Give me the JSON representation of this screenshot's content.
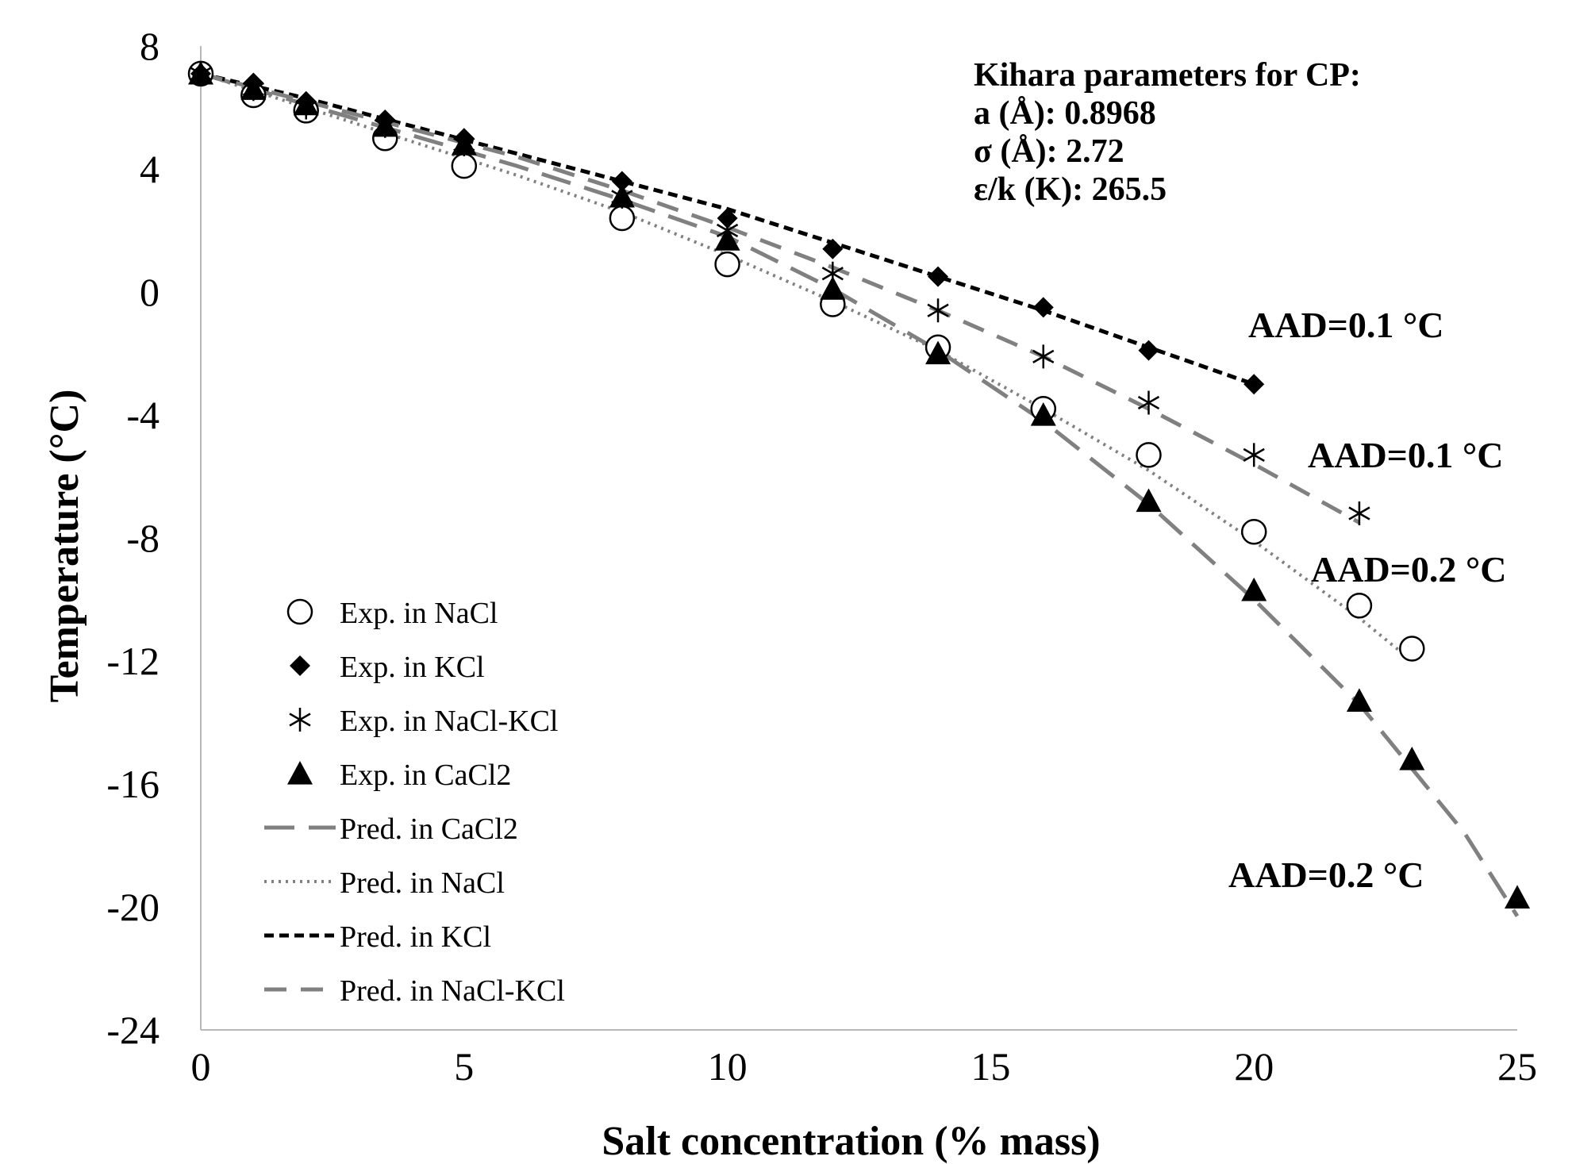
{
  "chart_data": {
    "type": "scatter",
    "xlabel": "Salt concentration (% mass)",
    "ylabel": "Temperature  (°C)",
    "xlim": [
      0,
      25
    ],
    "ylim": [
      -24,
      8
    ],
    "xticks": [
      0,
      5,
      10,
      15,
      20,
      25
    ],
    "yticks": [
      8,
      4,
      0,
      -4,
      -8,
      -12,
      -16,
      -20,
      -24
    ],
    "grid": false,
    "legend_position": "left-middle",
    "annotation_box": {
      "lines": [
        "Kihara parameters  for CP:",
        "a (Å): 0.8968",
        "σ (Å): 2.72",
        "ε/k  (K): 265.5"
      ]
    },
    "aad_labels": [
      {
        "text": "AAD=0.1 °C",
        "series": "KCl"
      },
      {
        "text": "AAD=0.1 °C",
        "series": "NaCl-KCl"
      },
      {
        "text": "AAD=0.2 °C",
        "series": "NaCl"
      },
      {
        "text": "AAD=0.2 °C",
        "series": "CaCl2"
      }
    ],
    "series": [
      {
        "name": "Exp. in NaCl",
        "kind": "marker",
        "marker": "open-circle",
        "color": "#000000",
        "x": [
          0,
          1,
          2,
          3.5,
          5,
          8,
          10,
          12,
          14,
          16,
          18,
          20,
          22,
          23
        ],
        "y": [
          7.1,
          6.4,
          5.9,
          5.0,
          4.1,
          2.4,
          0.9,
          -0.4,
          -1.8,
          -3.8,
          -5.3,
          -7.8,
          -10.2,
          -11.6
        ]
      },
      {
        "name": "Exp. in KCl",
        "kind": "marker",
        "marker": "filled-diamond",
        "color": "#000000",
        "x": [
          0,
          1,
          2,
          3.5,
          5,
          8,
          10,
          12,
          14,
          16,
          18,
          20
        ],
        "y": [
          7.1,
          6.8,
          6.2,
          5.6,
          5.0,
          3.6,
          2.4,
          1.4,
          0.5,
          -0.5,
          -1.9,
          -3.0
        ]
      },
      {
        "name": "Exp. in NaCl-KCl",
        "kind": "marker",
        "marker": "asterisk",
        "color": "#000000",
        "x": [
          0,
          1,
          2,
          3.5,
          5,
          8,
          10,
          12,
          14,
          16,
          18,
          20,
          22
        ],
        "y": [
          7.1,
          6.6,
          6.0,
          5.4,
          4.8,
          3.1,
          2.0,
          0.6,
          -0.6,
          -2.1,
          -3.6,
          -5.3,
          -7.2
        ]
      },
      {
        "name": "Exp. in CaCl2",
        "kind": "marker",
        "marker": "filled-triangle",
        "color": "#000000",
        "x": [
          0,
          1,
          2,
          3.5,
          5,
          8,
          10,
          12,
          14,
          16,
          18,
          20,
          22,
          23,
          25
        ],
        "y": [
          7.1,
          6.6,
          6.1,
          5.4,
          4.8,
          3.1,
          1.7,
          0.1,
          -2.0,
          -4.0,
          -6.8,
          -9.7,
          -13.3,
          -15.2,
          -19.7
        ]
      },
      {
        "name": "Pred. in CaCl2",
        "kind": "line",
        "dash": "long-dash",
        "color": "#808080",
        "x": [
          0,
          2,
          4,
          6,
          8,
          10,
          12,
          14,
          16,
          18,
          20,
          22,
          24,
          25
        ],
        "y": [
          7.1,
          6.1,
          5.1,
          4.1,
          3.0,
          1.8,
          0.1,
          -1.9,
          -4.2,
          -6.9,
          -10.0,
          -13.4,
          -17.6,
          -20.3
        ]
      },
      {
        "name": "Pred. in NaCl",
        "kind": "line",
        "dash": "dotted",
        "color": "#808080",
        "x": [
          0,
          2,
          4,
          6,
          8,
          10,
          12,
          14,
          16,
          18,
          20,
          22,
          23
        ],
        "y": [
          7.1,
          6.0,
          4.9,
          3.8,
          2.6,
          1.2,
          -0.3,
          -1.9,
          -3.8,
          -5.8,
          -8.1,
          -10.6,
          -12.0
        ]
      },
      {
        "name": "Pred. in KCl",
        "kind": "line",
        "dash": "short-dash",
        "color": "#000000",
        "x": [
          0,
          2,
          4,
          6,
          8,
          10,
          12,
          14,
          16,
          18,
          20
        ],
        "y": [
          7.1,
          6.3,
          5.4,
          4.5,
          3.6,
          2.7,
          1.6,
          0.5,
          -0.6,
          -1.8,
          -3.0
        ]
      },
      {
        "name": "Pred. in NaCl-KCl",
        "kind": "line",
        "dash": "medium-dash",
        "color": "#808080",
        "x": [
          0,
          2,
          4,
          6,
          8,
          10,
          12,
          14,
          16,
          18,
          20,
          22
        ],
        "y": [
          7.1,
          6.2,
          5.3,
          4.4,
          3.3,
          2.1,
          0.8,
          -0.6,
          -2.1,
          -3.8,
          -5.6,
          -7.5
        ]
      }
    ]
  }
}
